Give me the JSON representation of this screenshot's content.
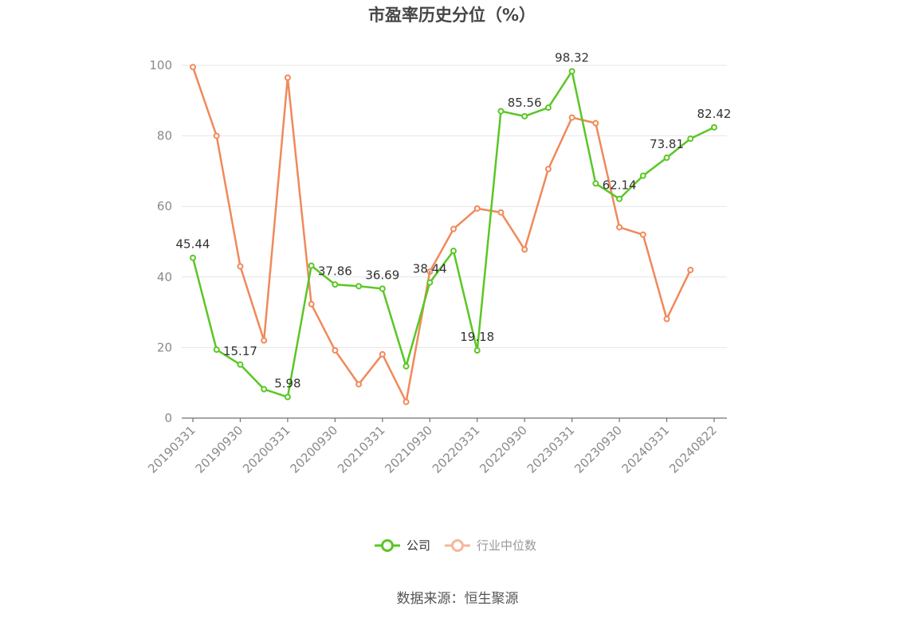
{
  "chart_data": {
    "type": "line",
    "title": "市盈率历史分位（%）",
    "x": [
      "20190331",
      "20190630",
      "20190930",
      "20191231",
      "20200331",
      "20200630",
      "20200930",
      "20201231",
      "20210331",
      "20210630",
      "20210930",
      "20211231",
      "20220331",
      "20220630",
      "20220930",
      "20221231",
      "20230331",
      "20230630",
      "20230930",
      "20231231",
      "20240331",
      "20240630",
      "20240822"
    ],
    "x_tick_labels": [
      "20190331",
      "20190930",
      "20200331",
      "20200930",
      "20210331",
      "20210930",
      "20220331",
      "20220930",
      "20230331",
      "20230930",
      "20240331",
      "20240822"
    ],
    "ylim": [
      0,
      100
    ],
    "y_ticks": [
      0,
      20,
      40,
      60,
      80,
      100
    ],
    "grid": true,
    "legend_position": "bottom",
    "series": [
      {
        "name": "公司",
        "color": "#5ac724",
        "values": [
          45.44,
          19.4,
          15.17,
          8.2,
          5.98,
          43.2,
          37.86,
          37.4,
          36.69,
          14.7,
          38.44,
          47.4,
          19.18,
          87.0,
          85.56,
          88.0,
          98.32,
          66.5,
          62.14,
          68.7,
          73.81,
          79.2,
          82.42
        ],
        "labels": {
          "0": "45.44",
          "2": "15.17",
          "4": "5.98",
          "6": "37.86",
          "8": "36.69",
          "10": "38.44",
          "12": "19.18",
          "14": "85.56",
          "16": "98.32",
          "18": "62.14",
          "20": "73.81",
          "22": "82.42"
        }
      },
      {
        "name": "行业中位数",
        "color": "#f0895a",
        "values": [
          99.5,
          80.0,
          43.0,
          22.0,
          96.5,
          32.3,
          19.2,
          9.6,
          18.1,
          4.6,
          41.5,
          53.6,
          59.4,
          58.3,
          47.8,
          70.6,
          85.2,
          83.6,
          54.1,
          52.0,
          28.1,
          42.0,
          null
        ]
      }
    ]
  },
  "legend": {
    "items": [
      {
        "label": "公司",
        "color": "#5ac724",
        "active": true
      },
      {
        "label": "行业中位数",
        "color": "#f5b79a",
        "active": false
      }
    ]
  },
  "source": "数据来源：恒生聚源"
}
